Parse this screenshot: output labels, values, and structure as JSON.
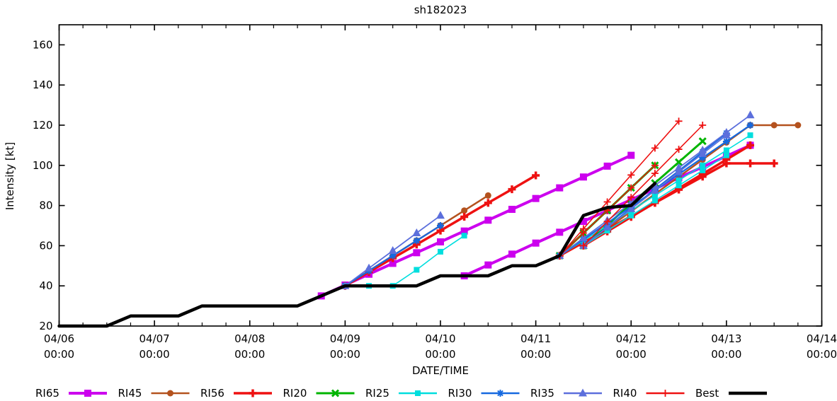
{
  "title": "sh182023",
  "axes": {
    "xlabel": "DATE/TIME",
    "ylabel": "Intensity [kt]",
    "y_ticks": [
      20,
      40,
      60,
      80,
      100,
      120,
      140,
      160
    ],
    "x_ticks": [
      {
        "t": 0,
        "date": "04/06",
        "time": "00:00"
      },
      {
        "t": 24,
        "date": "04/07",
        "time": "00:00"
      },
      {
        "t": 48,
        "date": "04/08",
        "time": "00:00"
      },
      {
        "t": 72,
        "date": "04/09",
        "time": "00:00"
      },
      {
        "t": 96,
        "date": "04/10",
        "time": "00:00"
      },
      {
        "t": 120,
        "date": "04/11",
        "time": "00:00"
      },
      {
        "t": 144,
        "date": "04/12",
        "time": "00:00"
      },
      {
        "t": 168,
        "date": "04/13",
        "time": "00:00"
      },
      {
        "t": 192,
        "date": "04/14",
        "time": "00:00"
      }
    ],
    "x_minor_step_hours": 6,
    "x_range_hours": [
      0,
      192
    ],
    "y_range": [
      20,
      170
    ]
  },
  "chart_data": {
    "type": "line",
    "title": "sh182023",
    "xlabel": "DATE/TIME",
    "ylabel": "Intensity [kt]",
    "x_unit": "hours since 04/06 00:00",
    "ylim": [
      20,
      170
    ],
    "grid": false,
    "legend_position": "bottom",
    "styles": {
      "RI65": {
        "color": "#cc00ee",
        "lw": 4,
        "marker": "square",
        "ms": 10
      },
      "RI45": {
        "color": "#b4521e",
        "lw": 2.5,
        "marker": "circle",
        "ms": 9
      },
      "RI56": {
        "color": "#ee1111",
        "lw": 3.5,
        "marker": "plus",
        "ms": 11
      },
      "RI20": {
        "color": "#00b400",
        "lw": 3,
        "marker": "xcross",
        "ms": 9
      },
      "RI25": {
        "color": "#00dede",
        "lw": 1.6,
        "marker": "square",
        "ms": 8
      },
      "RI30": {
        "color": "#1569e0",
        "lw": 2.2,
        "marker": "star",
        "ms": 10
      },
      "RI35": {
        "color": "#5c6fdc",
        "lw": 1.8,
        "marker": "triangle",
        "ms": 11
      },
      "RI40": {
        "color": "#ee1111",
        "lw": 1.6,
        "marker": "plus",
        "ms": 10
      },
      "Best": {
        "color": "#000000",
        "lw": 4.5,
        "marker": "none",
        "ms": 0
      }
    },
    "legend": [
      "RI65",
      "RI45",
      "RI56",
      "RI20",
      "RI25",
      "RI30",
      "RI35",
      "RI40",
      "Best"
    ],
    "series": [
      {
        "style": "RI65",
        "points": [
          [
            66,
            35
          ],
          [
            72,
            40.4
          ],
          [
            78,
            45.8
          ],
          [
            84,
            51.2
          ],
          [
            90,
            56.5
          ],
          [
            96,
            61.9
          ],
          [
            102,
            67.3
          ],
          [
            108,
            72.7
          ],
          [
            114,
            78.1
          ],
          [
            120,
            83.5
          ],
          [
            126,
            88.8
          ],
          [
            132,
            94.2
          ],
          [
            138,
            99.6
          ],
          [
            144,
            105
          ]
        ]
      },
      {
        "style": "RI65",
        "points": [
          [
            102,
            45
          ],
          [
            108,
            50.4
          ],
          [
            114,
            55.8
          ],
          [
            120,
            61.3
          ],
          [
            126,
            66.7
          ],
          [
            132,
            72.1
          ],
          [
            138,
            77.5
          ],
          [
            144,
            82.9
          ],
          [
            150,
            88.3
          ],
          [
            156,
            93.8
          ],
          [
            162,
            99.2
          ],
          [
            168,
            104.6
          ],
          [
            174,
            110
          ]
        ]
      },
      {
        "style": "RI45",
        "points": [
          [
            72,
            40
          ],
          [
            78,
            47.5
          ],
          [
            84,
            55
          ],
          [
            90,
            62.5
          ],
          [
            96,
            70
          ],
          [
            102,
            77.5
          ],
          [
            108,
            85
          ]
        ]
      },
      {
        "style": "RI45",
        "points": [
          [
            132,
            60
          ],
          [
            138,
            68.6
          ],
          [
            144,
            77.1
          ],
          [
            150,
            85.7
          ],
          [
            156,
            94.3
          ],
          [
            162,
            102.9
          ],
          [
            168,
            111.4
          ],
          [
            174,
            120
          ],
          [
            180,
            120
          ],
          [
            186,
            120
          ]
        ]
      },
      {
        "style": "RI56",
        "points": [
          [
            72,
            40
          ],
          [
            78,
            46.9
          ],
          [
            84,
            53.8
          ],
          [
            90,
            60.6
          ],
          [
            96,
            67.5
          ],
          [
            102,
            74.4
          ],
          [
            108,
            81.3
          ],
          [
            114,
            88.1
          ],
          [
            120,
            95
          ]
        ]
      },
      {
        "style": "RI56",
        "points": [
          [
            126,
            55
          ],
          [
            132,
            61.6
          ],
          [
            138,
            68.1
          ],
          [
            144,
            74.7
          ],
          [
            150,
            81.3
          ],
          [
            156,
            87.9
          ],
          [
            162,
            94.4
          ],
          [
            168,
            101
          ],
          [
            174,
            101
          ],
          [
            180,
            101
          ]
        ]
      },
      {
        "style": "RI56",
        "points": [
          [
            132,
            60
          ],
          [
            138,
            67.1
          ],
          [
            144,
            74.3
          ],
          [
            150,
            81.4
          ],
          [
            156,
            88.6
          ],
          [
            162,
            95.7
          ],
          [
            168,
            102.9
          ],
          [
            174,
            110
          ]
        ]
      },
      {
        "style": "RI20",
        "points": [
          [
            126,
            55
          ],
          [
            132,
            66.3
          ],
          [
            138,
            77.5
          ],
          [
            144,
            88.8
          ],
          [
            150,
            100
          ]
        ]
      },
      {
        "style": "RI20",
        "points": [
          [
            132,
            60
          ],
          [
            138,
            70.4
          ],
          [
            144,
            80.8
          ],
          [
            150,
            91.2
          ],
          [
            156,
            101.6
          ],
          [
            162,
            112
          ]
        ]
      },
      {
        "style": "RI25",
        "points": [
          [
            72,
            40
          ],
          [
            78,
            40
          ],
          [
            84,
            40
          ],
          [
            90,
            48
          ],
          [
            96,
            57
          ],
          [
            102,
            65
          ]
        ]
      },
      {
        "style": "RI25",
        "points": [
          [
            126,
            55
          ],
          [
            132,
            62.5
          ],
          [
            138,
            70
          ],
          [
            144,
            77.5
          ],
          [
            150,
            85
          ],
          [
            156,
            92.5
          ],
          [
            162,
            100
          ],
          [
            168,
            107.5
          ],
          [
            174,
            115
          ]
        ]
      },
      {
        "style": "RI25",
        "points": [
          [
            132,
            60
          ],
          [
            138,
            67.5
          ],
          [
            144,
            75
          ],
          [
            150,
            82.5
          ],
          [
            156,
            90
          ],
          [
            162,
            97.5
          ],
          [
            168,
            105
          ]
        ]
      },
      {
        "style": "RI30",
        "points": [
          [
            72,
            40
          ],
          [
            78,
            47.5
          ],
          [
            84,
            55
          ],
          [
            90,
            62.5
          ],
          [
            96,
            70
          ]
        ]
      },
      {
        "style": "RI30",
        "points": [
          [
            126,
            55
          ],
          [
            132,
            63.1
          ],
          [
            138,
            71.3
          ],
          [
            144,
            79.4
          ],
          [
            150,
            87.5
          ],
          [
            156,
            95.6
          ],
          [
            162,
            103.8
          ],
          [
            168,
            111.9
          ],
          [
            174,
            120
          ]
        ]
      },
      {
        "style": "RI30",
        "points": [
          [
            132,
            60
          ],
          [
            138,
            69.3
          ],
          [
            144,
            78.7
          ],
          [
            150,
            88
          ],
          [
            156,
            97.3
          ],
          [
            162,
            106.7
          ],
          [
            168,
            116
          ]
        ]
      },
      {
        "style": "RI35",
        "points": [
          [
            72,
            40
          ],
          [
            78,
            48.8
          ],
          [
            84,
            57.5
          ],
          [
            90,
            66.3
          ],
          [
            96,
            75
          ]
        ]
      },
      {
        "style": "RI35",
        "points": [
          [
            126,
            55
          ],
          [
            132,
            63.8
          ],
          [
            138,
            72.5
          ],
          [
            144,
            81.3
          ],
          [
            150,
            90
          ],
          [
            156,
            98.8
          ],
          [
            162,
            107.5
          ],
          [
            168,
            116.3
          ],
          [
            174,
            125
          ]
        ]
      },
      {
        "style": "RI35",
        "points": [
          [
            132,
            60
          ],
          [
            138,
            69.2
          ],
          [
            144,
            78.3
          ],
          [
            150,
            87.5
          ],
          [
            156,
            96.7
          ],
          [
            162,
            105.8
          ],
          [
            168,
            115
          ]
        ]
      },
      {
        "style": "RI40",
        "points": [
          [
            126,
            55
          ],
          [
            132,
            68.4
          ],
          [
            138,
            81.8
          ],
          [
            144,
            95.2
          ],
          [
            150,
            108.6
          ],
          [
            156,
            122
          ]
        ]
      },
      {
        "style": "RI40",
        "points": [
          [
            132,
            60
          ],
          [
            138,
            72
          ],
          [
            144,
            84
          ],
          [
            150,
            96
          ],
          [
            156,
            108
          ],
          [
            162,
            120
          ]
        ]
      },
      {
        "style": "RI40",
        "points": [
          [
            126,
            55
          ],
          [
            132,
            66.3
          ],
          [
            138,
            77.5
          ],
          [
            144,
            88.8
          ],
          [
            150,
            100
          ]
        ]
      },
      {
        "style": "Best",
        "points": [
          [
            0,
            20
          ],
          [
            6,
            20
          ],
          [
            12,
            20
          ],
          [
            18,
            25
          ],
          [
            24,
            25
          ],
          [
            30,
            25
          ],
          [
            36,
            30
          ],
          [
            42,
            30
          ],
          [
            48,
            30
          ],
          [
            54,
            30
          ],
          [
            60,
            30
          ],
          [
            66,
            35
          ],
          [
            72,
            40
          ],
          [
            78,
            40
          ],
          [
            84,
            40
          ],
          [
            90,
            40
          ],
          [
            96,
            45
          ],
          [
            102,
            45
          ],
          [
            108,
            45
          ],
          [
            114,
            50
          ],
          [
            120,
            50
          ],
          [
            126,
            55
          ],
          [
            132,
            75
          ],
          [
            138,
            79
          ],
          [
            144,
            80
          ],
          [
            150,
            91
          ]
        ]
      }
    ]
  }
}
